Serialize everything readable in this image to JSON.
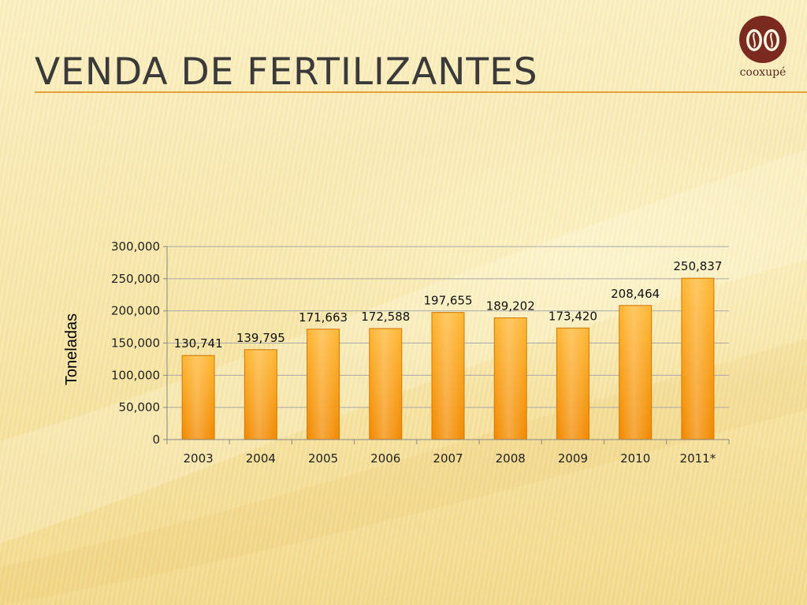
{
  "slide": {
    "title": "VENDA DE FERTILIZANTES",
    "logo_text": "cooxupé",
    "accent_color": "#e5a23a"
  },
  "chart_data": {
    "type": "bar",
    "categories": [
      "2003",
      "2004",
      "2005",
      "2006",
      "2007",
      "2008",
      "2009",
      "2010",
      "2011*"
    ],
    "values": [
      130741,
      139795,
      171663,
      172588,
      197655,
      189202,
      173420,
      208464,
      250837
    ],
    "data_labels": [
      "130,741",
      "139,795",
      "171,663",
      "172,588",
      "197,655",
      "189,202",
      "173,420",
      "208,464",
      "250,837"
    ],
    "title": "",
    "xlabel": "",
    "ylabel": "Toneladas",
    "ylim": [
      0,
      300000
    ],
    "yticks": [
      0,
      50000,
      100000,
      150000,
      200000,
      250000,
      300000
    ],
    "ytick_labels": [
      "0",
      "50,000",
      "100,000",
      "150,000",
      "200,000",
      "250,000",
      "300,000"
    ],
    "grid": true,
    "legend": false,
    "bar_color_top": "#ffb733",
    "bar_color_bottom": "#f28a00",
    "bar_edge_color": "#d07a10"
  }
}
